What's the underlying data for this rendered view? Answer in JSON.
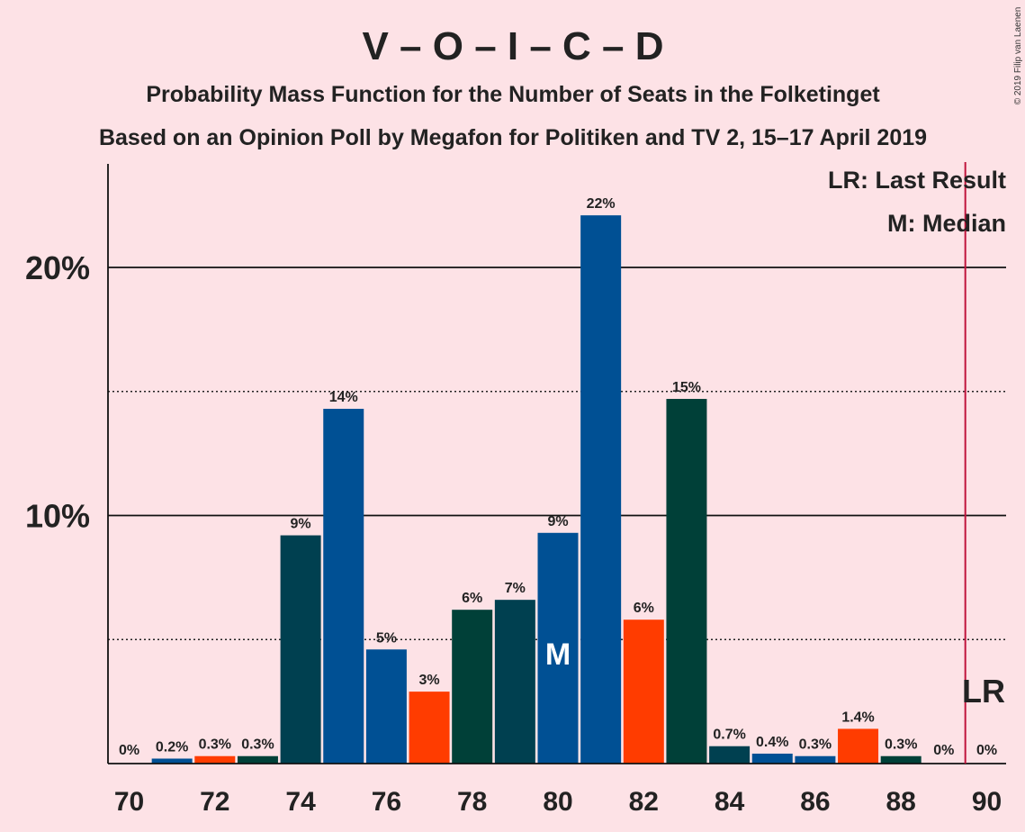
{
  "chart_data": {
    "type": "bar",
    "title": "V – O – I – C – D",
    "subtitle": "Probability Mass Function for the Number of Seats in the Folketinget",
    "subtitle2": "Based on an Opinion Poll by Megafon for Politiken and TV 2, 15–17 April 2019",
    "copyright": "© 2019 Filip van Laenen",
    "legend": {
      "lr": "LR: Last Result",
      "median": "M: Median",
      "placement": "top-right"
    },
    "x": [
      70,
      71,
      72,
      73,
      74,
      75,
      76,
      77,
      78,
      79,
      80,
      81,
      82,
      83,
      84,
      85,
      86,
      87,
      88,
      89,
      90
    ],
    "values": [
      0,
      0.2,
      0.3,
      0.3,
      9.2,
      14.3,
      4.6,
      2.9,
      6.2,
      6.6,
      9.3,
      22.1,
      5.8,
      14.7,
      0.7,
      0.4,
      0.3,
      1.4,
      0.3,
      0,
      0
    ],
    "labels": [
      "0%",
      "0.2%",
      "0.3%",
      "0.3%",
      "9%",
      "14%",
      "5%",
      "3%",
      "6%",
      "7%",
      "9%",
      "22%",
      "6%",
      "15%",
      "0.7%",
      "0.4%",
      "0.3%",
      "1.4%",
      "0.3%",
      "0%",
      "0%"
    ],
    "colors": [
      "#005094",
      "#005094",
      "#FF3C00",
      "#004038",
      "#004050",
      "#005094",
      "#005094",
      "#FF3C00",
      "#004038",
      "#004050",
      "#005094",
      "#005094",
      "#FF3C00",
      "#004038",
      "#004050",
      "#005094",
      "#005094",
      "#FF3C00",
      "#004038",
      "#004050",
      "#005094"
    ],
    "xticks": [
      "70",
      "72",
      "74",
      "76",
      "78",
      "80",
      "82",
      "84",
      "86",
      "88",
      "90"
    ],
    "yticks": [
      {
        "value": 10,
        "label": "10%"
      },
      {
        "value": 20,
        "label": "20%"
      }
    ],
    "minor_gridlines": [
      5,
      15
    ],
    "ylim": [
      0,
      24
    ],
    "median": {
      "x": 80,
      "label": "M"
    },
    "last_result": {
      "x": 89.5,
      "label": "LR"
    }
  }
}
